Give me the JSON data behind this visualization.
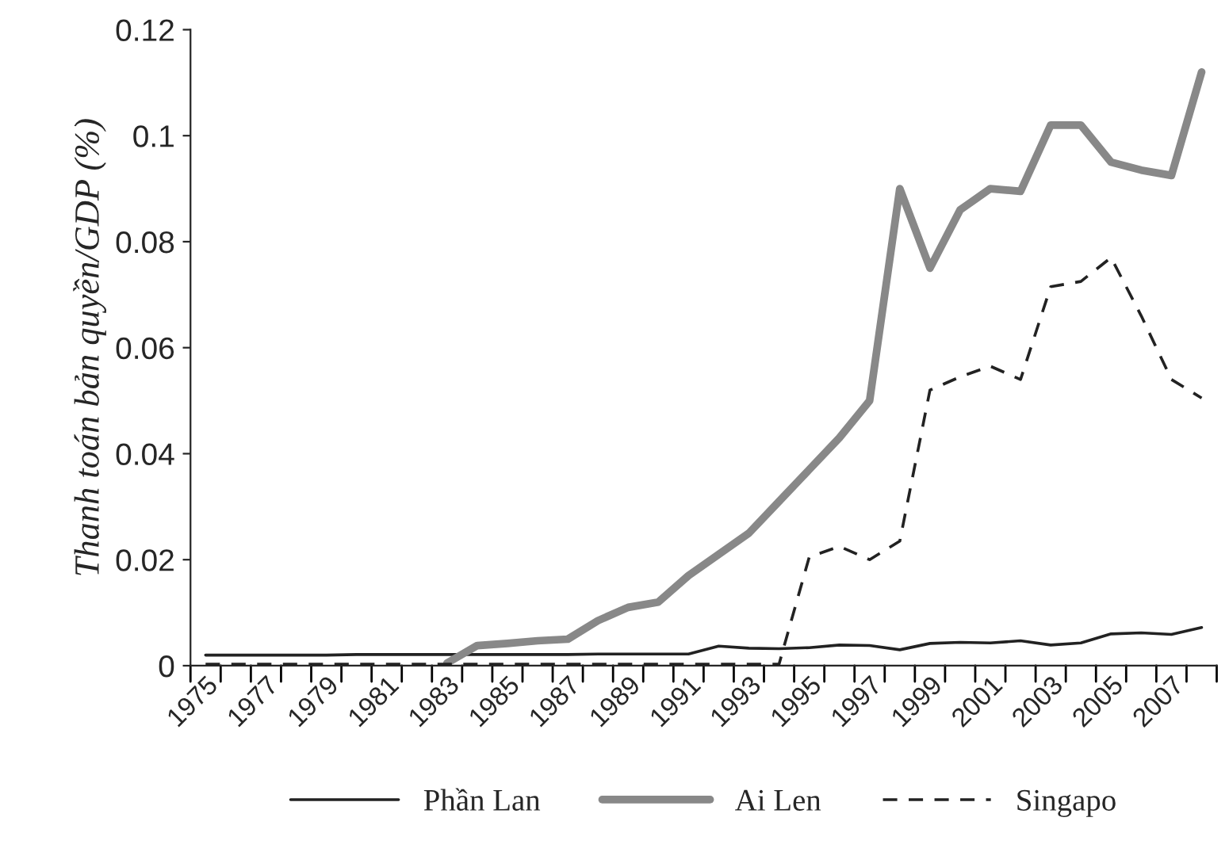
{
  "chart_data": {
    "type": "line",
    "ylabel": "Thanh toán bản quyền/GDP (%)",
    "categories": [
      "1975",
      null,
      "1977",
      null,
      "1979",
      null,
      "1981",
      null,
      "1983",
      null,
      "1985",
      null,
      "1987",
      null,
      "1989",
      null,
      "1991",
      null,
      "1993",
      null,
      "1995",
      null,
      "1997",
      null,
      "1999",
      null,
      "2001",
      null,
      "2003",
      null,
      "2005",
      null,
      "2007",
      null
    ],
    "series": [
      {
        "name": "Phần Lan",
        "color": "#222222",
        "line_style": "solid",
        "values": [
          0.002,
          0.002,
          0.002,
          0.002,
          0.002,
          0.0021,
          0.0021,
          0.0021,
          0.0021,
          0.0021,
          0.0021,
          0.0021,
          0.0021,
          0.0022,
          0.0022,
          0.0022,
          0.0022,
          0.0037,
          0.0033,
          0.0032,
          0.0034,
          0.0039,
          0.0038,
          0.003,
          0.0042,
          0.0044,
          0.0043,
          0.0047,
          0.0039,
          0.0043,
          0.006,
          0.0062,
          0.0059,
          0.0072
        ]
      },
      {
        "name": "Ai Len",
        "color": "#888888",
        "line_style": "solid",
        "values": [
          null,
          null,
          null,
          null,
          null,
          null,
          null,
          null,
          0.0005,
          0.0038,
          0.0042,
          0.0047,
          0.005,
          0.0085,
          0.011,
          0.012,
          0.017,
          0.021,
          0.025,
          0.031,
          0.037,
          0.043,
          0.05,
          0.09,
          0.075,
          0.086,
          0.09,
          0.0895,
          0.102,
          0.102,
          0.095,
          0.0935,
          0.0925,
          0.112
        ]
      },
      {
        "name": "Singapo",
        "color": "#222222",
        "line_style": "dashed",
        "values": [
          0.0003,
          0.0003,
          0.0003,
          0.0003,
          0.0003,
          0.0003,
          0.0003,
          0.0003,
          0.0003,
          0.0003,
          0.0003,
          0.0003,
          0.0003,
          0.0003,
          0.0003,
          0.0003,
          0.0003,
          0.0003,
          0.0003,
          0.0003,
          0.0205,
          0.0225,
          0.02,
          0.0235,
          0.052,
          0.0545,
          0.0565,
          0.054,
          0.0715,
          0.0725,
          0.077,
          0.066,
          0.054,
          0.0505
        ]
      }
    ],
    "ylim": [
      0,
      0.12
    ],
    "yticks": [
      0,
      0.02,
      0.04,
      0.06,
      0.08,
      0.1,
      0.12
    ],
    "grid": false,
    "legend": "bottom"
  }
}
